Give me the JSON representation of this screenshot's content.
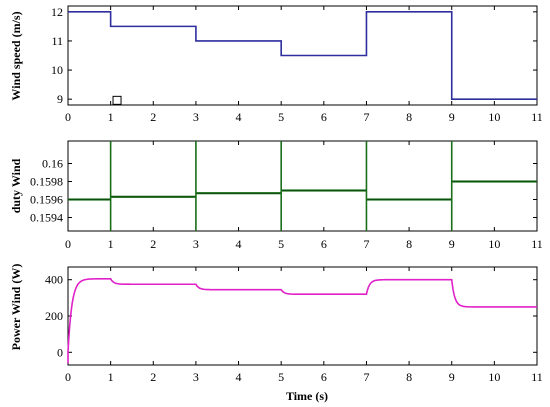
{
  "chart_data": [
    {
      "type": "line",
      "ylabel": "Wind speed (m/s)",
      "xlim": [
        0,
        11
      ],
      "ylim": [
        8.8,
        12.2
      ],
      "xticks": [
        "0",
        "1",
        "2",
        "3",
        "4",
        "5",
        "6",
        "7",
        "8",
        "9",
        "10",
        "11"
      ],
      "yticks": [
        {
          "v": 12,
          "label": "12"
        },
        {
          "v": 11,
          "label": "11"
        },
        {
          "v": 10,
          "label": "10"
        },
        {
          "v": 9,
          "label": "9"
        }
      ],
      "color": "#2e2e9e",
      "series": [
        {
          "x": [
            0,
            1,
            1,
            3,
            3,
            5,
            5,
            7,
            7,
            9,
            9,
            11
          ],
          "y": [
            12,
            12,
            11.5,
            11.5,
            11,
            11,
            10.5,
            10.5,
            12,
            12,
            9,
            9
          ]
        }
      ],
      "marker": {
        "shape": "square",
        "x": 1.15,
        "y": 8.96
      }
    },
    {
      "type": "line",
      "ylabel": "duty Wind",
      "xlim": [
        0,
        11
      ],
      "ylim": [
        0.15925,
        0.16025
      ],
      "xticks": [
        "0",
        "1",
        "2",
        "3",
        "4",
        "5",
        "6",
        "7",
        "8",
        "9",
        "10",
        "11"
      ],
      "yticks": [
        {
          "v": 0.16,
          "label": "0.16"
        },
        {
          "v": 0.1598,
          "label": "0.1598"
        },
        {
          "v": 0.1596,
          "label": "0.1596"
        },
        {
          "v": 0.1594,
          "label": "0.1594"
        }
      ],
      "color": "#1a6e1a",
      "series": [
        {
          "segments": [
            {
              "x0": 0,
              "x1": 1,
              "y": 0.1596
            },
            {
              "x0": 1,
              "x1": 3,
              "y": 0.15963
            },
            {
              "x0": 3,
              "x1": 5,
              "y": 0.15967
            },
            {
              "x0": 5,
              "x1": 7,
              "y": 0.1597
            },
            {
              "x0": 7,
              "x1": 9,
              "y": 0.1596
            },
            {
              "x0": 9,
              "x1": 11,
              "y": 0.1598
            }
          ],
          "band": 1.2e-05,
          "spikes": [
            1,
            3,
            5,
            7,
            9
          ]
        }
      ]
    },
    {
      "type": "line",
      "ylabel": "Power Wind (W)",
      "xlabel": "Time (s)",
      "xlim": [
        0,
        11
      ],
      "ylim": [
        -70,
        470
      ],
      "xticks": [
        "0",
        "1",
        "2",
        "3",
        "4",
        "5",
        "6",
        "7",
        "8",
        "9",
        "10",
        "11"
      ],
      "yticks": [
        {
          "v": 400,
          "label": "400"
        },
        {
          "v": 200,
          "label": "200"
        },
        {
          "v": 0,
          "label": "0"
        }
      ],
      "color": "#e020c8",
      "series": [
        {
          "start": -60,
          "steps": [
            {
              "t": 0,
              "from": 0,
              "to": 405
            },
            {
              "t": 1,
              "from": 405,
              "to": 375
            },
            {
              "t": 3,
              "from": 375,
              "to": 345
            },
            {
              "t": 5,
              "from": 345,
              "to": 320
            },
            {
              "t": 7,
              "from": 320,
              "to": 400
            },
            {
              "t": 9,
              "from": 400,
              "to": 250
            }
          ],
          "end": 11
        }
      ]
    }
  ]
}
